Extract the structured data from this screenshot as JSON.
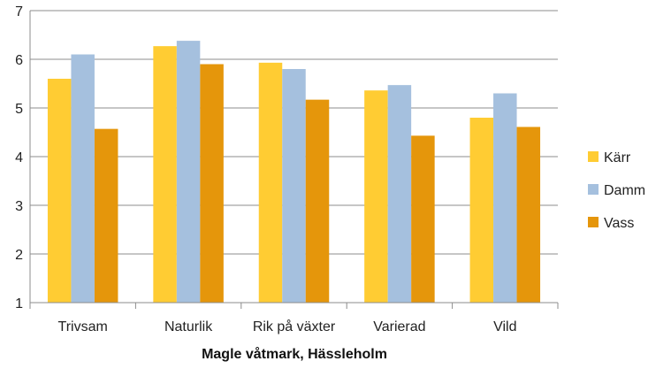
{
  "chart_data": {
    "type": "bar",
    "title": "",
    "xlabel": "Magle våtmark, Hässleholm",
    "ylabel": "",
    "ylim": [
      1,
      7
    ],
    "yticks": [
      1,
      2,
      3,
      4,
      5,
      6,
      7
    ],
    "grid": true,
    "legend_position": "right",
    "categories": [
      "Trivsam",
      "Naturlik",
      "Rik på växter",
      "Varierad",
      "Vild"
    ],
    "series": [
      {
        "name": "Kärr",
        "color": "#FFCC33",
        "values": [
          5.6,
          6.27,
          5.93,
          5.36,
          4.8
        ]
      },
      {
        "name": "Damm",
        "color": "#A5C0DE",
        "values": [
          6.1,
          6.38,
          5.8,
          5.47,
          5.3
        ]
      },
      {
        "name": "Vass",
        "color": "#E5960B",
        "values": [
          4.57,
          5.9,
          5.17,
          4.43,
          4.61
        ]
      }
    ]
  }
}
